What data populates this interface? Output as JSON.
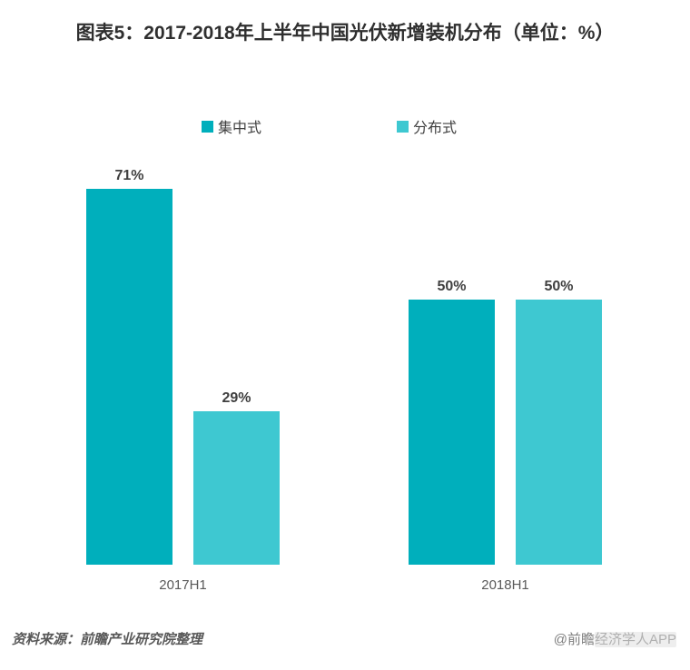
{
  "chart_data": {
    "type": "bar",
    "title": "图表5：2017-2018年上半年中国光伏新增装机分布（单位：%）",
    "unit": "%",
    "categories": [
      "2017H1",
      "2018H1"
    ],
    "series": [
      {
        "key": "centralized",
        "name": "集中式",
        "color": "#00AFBC",
        "values": [
          71,
          50
        ]
      },
      {
        "key": "distributed",
        "name": "分布式",
        "color": "#3EC8D1",
        "values": [
          29,
          50
        ]
      }
    ],
    "ylim": [
      0,
      80
    ],
    "grid": false,
    "axes_shown": false,
    "legend_position": "top",
    "data_labels_shown": true
  },
  "footer": {
    "source": "资料来源：前瞻产业研究院整理",
    "watermark_prefix": "@前瞻",
    "watermark_suffix": "经济学人APP"
  }
}
